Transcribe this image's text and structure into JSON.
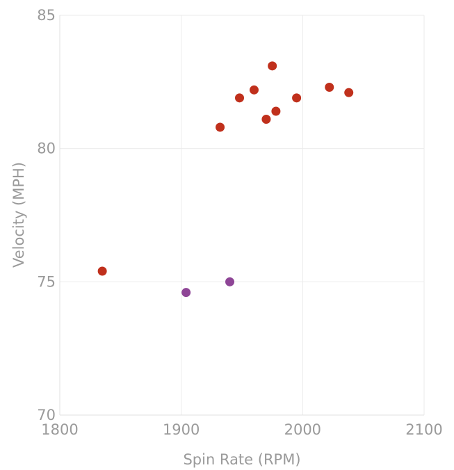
{
  "chart_data": {
    "type": "scatter",
    "title": "",
    "xlabel": "Spin Rate (RPM)",
    "ylabel": "Velocity (MPH)",
    "xlim": [
      1800,
      2100
    ],
    "ylim": [
      70,
      85
    ],
    "xticks": [
      1800,
      1900,
      2000,
      2100
    ],
    "yticks": [
      70,
      75,
      80,
      85
    ],
    "grid": true,
    "legend": "none",
    "series": [
      {
        "color": "#c0301c",
        "points": [
          {
            "x": 1835,
            "y": 75.4
          },
          {
            "x": 1932,
            "y": 80.8
          },
          {
            "x": 1948,
            "y": 81.9
          },
          {
            "x": 1960,
            "y": 82.2
          },
          {
            "x": 1970,
            "y": 81.1
          },
          {
            "x": 1975,
            "y": 83.1
          },
          {
            "x": 1978,
            "y": 81.4
          },
          {
            "x": 1995,
            "y": 81.9
          },
          {
            "x": 2022,
            "y": 82.3
          },
          {
            "x": 2038,
            "y": 82.1
          }
        ]
      },
      {
        "color": "#8e4596",
        "points": [
          {
            "x": 1904,
            "y": 74.6
          },
          {
            "x": 1940,
            "y": 75.0
          }
        ]
      }
    ]
  }
}
